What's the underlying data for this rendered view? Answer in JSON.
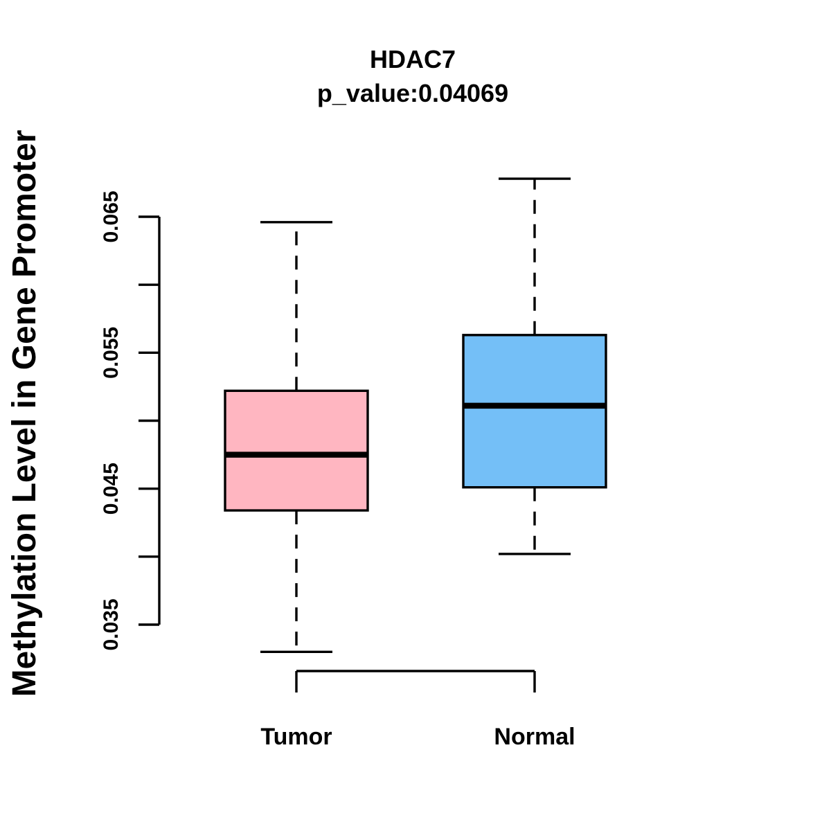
{
  "figure": {
    "title": "HDAC7",
    "subtitle": "p_value:0.04069",
    "y_axis_label": "Methylation Level in Gene Promoter"
  },
  "colors": {
    "tumor_fill": "#FFB6C1",
    "normal_fill": "#74BFF7",
    "line": "#000000",
    "background": "#FFFFFF"
  },
  "chart_data": {
    "type": "boxplot",
    "title": "HDAC7",
    "subtitle": "p_value:0.04069",
    "ylabel": "Methylation Level in Gene Promoter",
    "xlabel": "",
    "categories": [
      "Tumor",
      "Normal"
    ],
    "series": [
      {
        "name": "Tumor",
        "color": "#FFB6C1",
        "whisker_low": 0.033,
        "q1": 0.0434,
        "median": 0.0475,
        "q3": 0.0522,
        "whisker_high": 0.0646
      },
      {
        "name": "Normal",
        "color": "#74BFF7",
        "whisker_low": 0.0402,
        "q1": 0.0451,
        "median": 0.0511,
        "q3": 0.0563,
        "whisker_high": 0.0678
      }
    ],
    "y_axis": {
      "ticks": [
        0.035,
        0.04,
        0.045,
        0.05,
        0.055,
        0.06,
        0.065
      ],
      "tick_labels": [
        "0.035",
        "",
        "0.045",
        "",
        "0.055",
        "",
        "0.065"
      ],
      "range": [
        0.035,
        0.065
      ]
    },
    "grid": false,
    "legend": false,
    "outliers": []
  }
}
